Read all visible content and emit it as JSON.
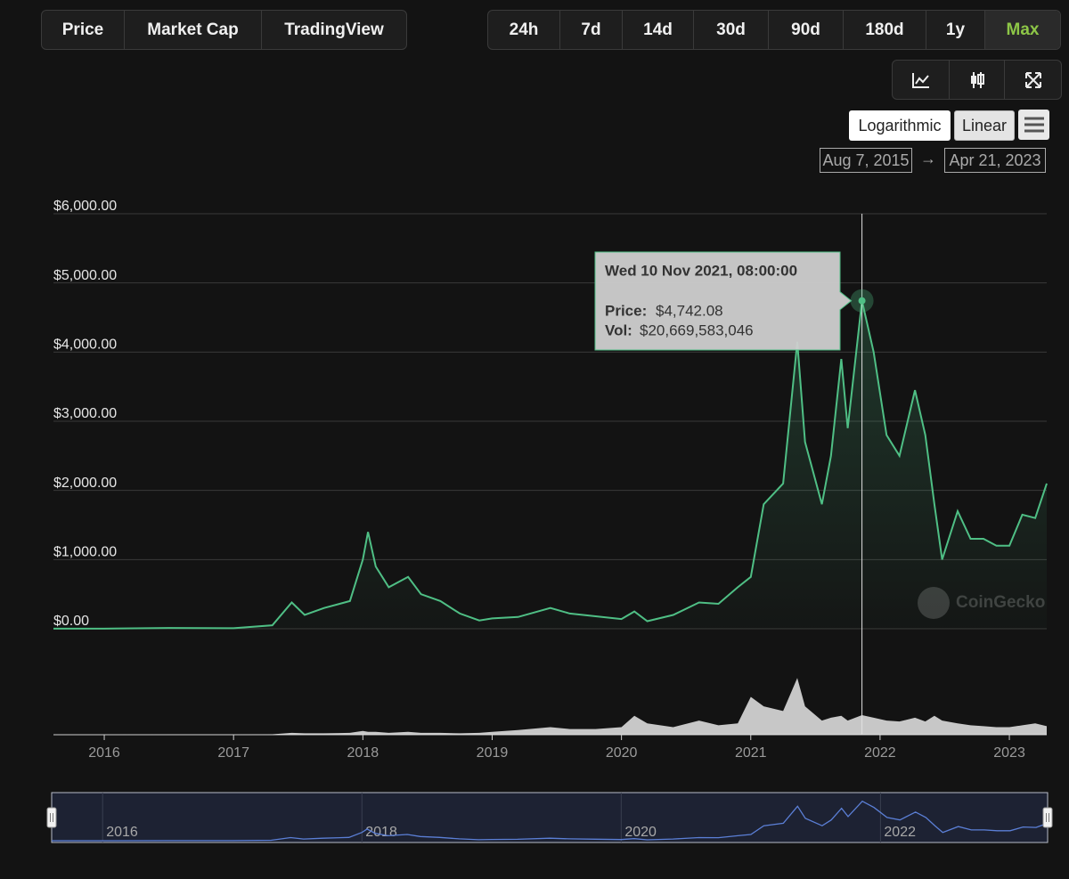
{
  "tabs": [
    "Price",
    "Market Cap",
    "TradingView"
  ],
  "ranges": [
    "24h",
    "7d",
    "14d",
    "30d",
    "90d",
    "180d",
    "1y",
    "Max"
  ],
  "active_range": "Max",
  "scale_buttons": [
    "Logarithmic",
    "Linear"
  ],
  "date_from": "Aug 7, 2015",
  "date_to": "Apr 21, 2023",
  "chart_data": {
    "type": "line",
    "x": [
      2015.607,
      2016.0,
      2016.5,
      2017.0,
      2017.3,
      2017.45,
      2017.55,
      2017.7,
      2017.9,
      2018.0,
      2018.04,
      2018.1,
      2018.2,
      2018.35,
      2018.45,
      2018.6,
      2018.75,
      2018.9,
      2019.0,
      2019.2,
      2019.45,
      2019.6,
      2019.8,
      2020.0,
      2020.1,
      2020.2,
      2020.4,
      2020.6,
      2020.75,
      2020.9,
      2021.0,
      2021.1,
      2021.25,
      2021.36,
      2021.42,
      2021.55,
      2021.62,
      2021.7,
      2021.75,
      2021.86,
      2021.95,
      2022.05,
      2022.15,
      2022.27,
      2022.35,
      2022.42,
      2022.48,
      2022.6,
      2022.7,
      2022.8,
      2022.9,
      2023.0,
      2023.1,
      2023.2,
      2023.289
    ],
    "series": [
      {
        "name": "Price",
        "color": "#4fbf85",
        "values": [
          1,
          1,
          12,
          8,
          50,
          380,
          200,
          300,
          400,
          1000,
          1400,
          900,
          600,
          750,
          500,
          400,
          220,
          120,
          150,
          170,
          300,
          220,
          180,
          140,
          250,
          110,
          200,
          380,
          360,
          600,
          750,
          1800,
          2100,
          4150,
          2700,
          1800,
          2500,
          3900,
          2900,
          4742.08,
          4000,
          2800,
          2500,
          3450,
          2800,
          1800,
          1000,
          1700,
          1300,
          1300,
          1200,
          1200,
          1650,
          1600,
          2100
        ]
      },
      {
        "name": "Vol",
        "color": "#e8e8e8",
        "axis": "y2",
        "values": [
          10000000,
          30000000,
          100000000,
          100000000,
          500000000,
          2000000000,
          1500000000,
          1500000000,
          2000000000,
          4000000000,
          3000000000,
          3000000000,
          2000000000,
          3000000000,
          2000000000,
          2000000000,
          1500000000,
          2000000000,
          3000000000,
          5000000000,
          8000000000,
          6000000000,
          6000000000,
          8000000000,
          20000000000,
          12000000000,
          8000000000,
          15000000000,
          10000000000,
          12000000000,
          40000000000,
          30000000000,
          25000000000,
          60000000000,
          30000000000,
          15000000000,
          18000000000,
          20000000000,
          15000000000,
          20669583046,
          18000000000,
          15000000000,
          14000000000,
          18000000000,
          14000000000,
          20000000000,
          15000000000,
          12000000000,
          10000000000,
          9000000000,
          8000000000,
          8000000000,
          10000000000,
          12000000000,
          9000000000
        ]
      }
    ],
    "xlim": [
      2015.607,
      2023.289
    ],
    "xticks": [
      2016,
      2017,
      2018,
      2019,
      2020,
      2021,
      2022,
      2023
    ],
    "ylim": [
      0,
      6000
    ],
    "yticks": [
      {
        "value": 0,
        "label": "$0.00"
      },
      {
        "value": 1000,
        "label": "$1,000.00"
      },
      {
        "value": 2000,
        "label": "$2,000.00"
      },
      {
        "value": 3000,
        "label": "$3,000.00"
      },
      {
        "value": 4000,
        "label": "$4,000.00"
      },
      {
        "value": 5000,
        "label": "$5,000.00"
      },
      {
        "value": 6000,
        "label": "$6,000.00"
      }
    ],
    "y2lim": [
      0,
      80000000000
    ],
    "grid": true,
    "tooltip": {
      "x": 2021.86,
      "date": "Wed 10 Nov 2021, 08:00:00",
      "price_caption": "Price:",
      "price": {
        "value": 4742.08,
        "label": "$4,742.08"
      },
      "vol_caption": "Vol:",
      "vol": {
        "value": 20669583046,
        "label": "$20,669,583,046"
      }
    },
    "watermark": "CoinGecko",
    "navigator_ticks": [
      2016,
      2018,
      2020,
      2022
    ]
  }
}
